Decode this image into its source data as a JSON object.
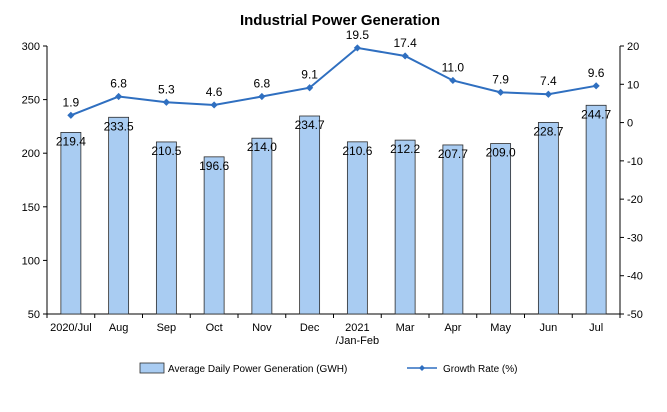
{
  "chart_data": {
    "title": "Industrial Power Generation",
    "type": "bar",
    "categories": [
      "2020/Jul",
      "Aug",
      "Sep",
      "Oct",
      "Nov",
      "Dec",
      "2021 /Jan-Feb",
      "Mar",
      "Apr",
      "May",
      "Jun",
      "Jul"
    ],
    "category_lines": [
      [
        "2020/Jul"
      ],
      [
        "Aug"
      ],
      [
        "Sep"
      ],
      [
        "Oct"
      ],
      [
        "Nov"
      ],
      [
        "Dec"
      ],
      [
        "2021",
        "/Jan-Feb"
      ],
      [
        "Mar"
      ],
      [
        "Apr"
      ],
      [
        "May"
      ],
      [
        "Jun"
      ],
      [
        "Jul"
      ]
    ],
    "series": [
      {
        "name": "Average Daily Power Generation (GWH)",
        "type": "bar",
        "axis": "left",
        "values": [
          219.4,
          233.5,
          210.5,
          196.6,
          214.0,
          234.7,
          210.6,
          212.2,
          207.7,
          209.0,
          228.7,
          244.7
        ],
        "labels": [
          "219.4",
          "233.5",
          "210.5",
          "196.6",
          "214.0",
          "234.7",
          "210.6",
          "212.2",
          "207.7",
          "209.0",
          "228.7",
          "244.7"
        ]
      },
      {
        "name": "Growth Rate (%)",
        "type": "line",
        "axis": "right",
        "values": [
          1.9,
          6.8,
          5.3,
          4.6,
          6.8,
          9.1,
          19.5,
          17.4,
          11.0,
          7.9,
          7.4,
          9.6
        ],
        "labels": [
          "1.9",
          "6.8",
          "5.3",
          "4.6",
          "6.8",
          "9.1",
          "19.5",
          "17.4",
          "11.0",
          "7.9",
          "7.4",
          "9.6"
        ]
      }
    ],
    "y_left": {
      "min": 50,
      "max": 300,
      "ticks": [
        50,
        100,
        150,
        200,
        250,
        300
      ]
    },
    "y_right": {
      "min": -50,
      "max": 20,
      "ticks": [
        -50,
        -40,
        -30,
        -20,
        -10,
        0,
        10,
        20
      ]
    },
    "grid": false,
    "legend_position": "bottom",
    "colors": {
      "bar_fill": "#a9ccf2",
      "bar_stroke": "#2b2b2b",
      "line": "#2f6fc0",
      "axis": "#000000"
    }
  }
}
